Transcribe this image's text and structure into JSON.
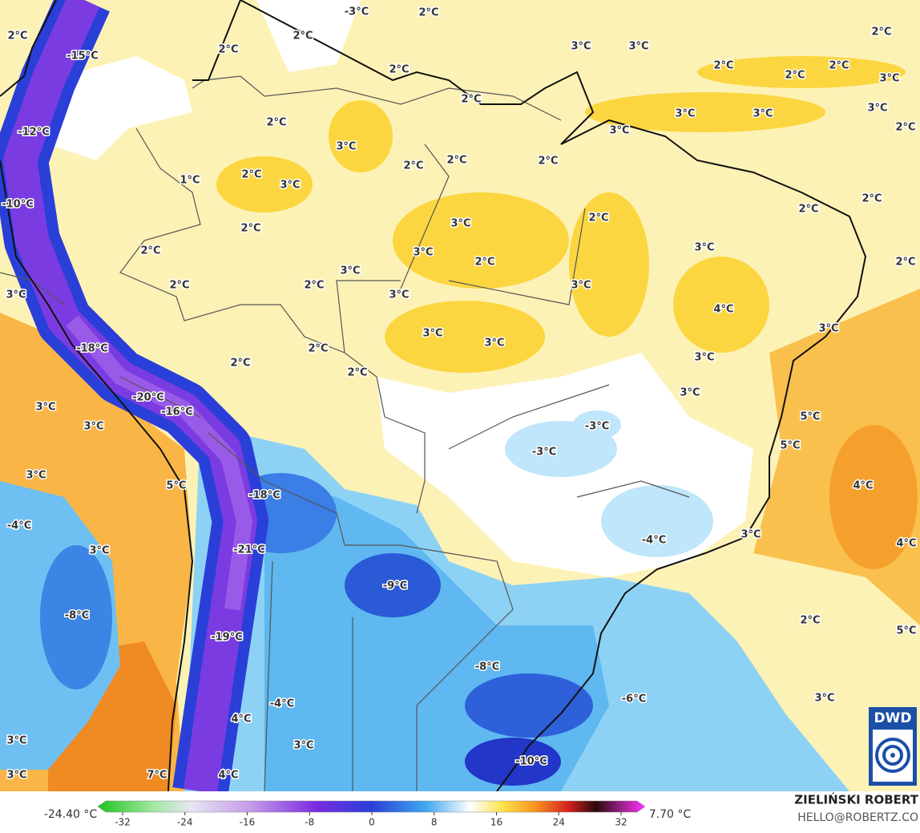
{
  "map": {
    "labels": [
      "-3°C",
      "2°C",
      "2°C",
      "2°C",
      "-15°C",
      "2°C",
      "3°C",
      "3°C",
      "2°C",
      "2°C",
      "2°C",
      "2°C",
      "3°C",
      "2°C",
      "2°C",
      "3°C",
      "2°C",
      "3°C",
      "3°C",
      "2°C",
      "-12°C",
      "3°C",
      "3°C",
      "2°C",
      "2°C",
      "2°C",
      "2°C",
      "3°C",
      "1°C",
      "-10°C",
      "2°C",
      "2°C",
      "2°C",
      "3°C",
      "2°C",
      "2°C",
      "3°C",
      "2°C",
      "3°C",
      "2°C",
      "3°C",
      "2°C",
      "2°C",
      "3°C",
      "3°C",
      "3°C",
      "4°C",
      "3°C",
      "3°C",
      "3°C",
      "-18°C",
      "2°C",
      "2°C",
      "3°C",
      "2°C",
      "-20°C",
      "3°C",
      "-16°C",
      "3°C",
      "3°C",
      "-3°C",
      "5°C",
      "-3°C",
      "5°C",
      "3°C",
      "5°C",
      "4°C",
      "-18°C",
      "-4°C",
      "3°C",
      "-4°C",
      "3°C",
      "-21°C",
      "4°C",
      "-9°C",
      "-8°C",
      "2°C",
      "-19°C",
      "5°C",
      "-8°C",
      "-6°C",
      "-4°C",
      "3°C",
      "4°C",
      "3°C",
      "3°C",
      "-10°C",
      "7°C",
      "4°C",
      "3°C"
    ]
  },
  "colorbar": {
    "min_label": "-24.40 °C",
    "max_label": "7.70 °C",
    "ticks": [
      -32,
      -24,
      -16,
      -8,
      0,
      8,
      16,
      24,
      32
    ]
  },
  "credits": {
    "author": "ZIELIŃSKI ROBERT",
    "email": "HELLO@ROBERTZ.CO",
    "logo": "DWD"
  }
}
